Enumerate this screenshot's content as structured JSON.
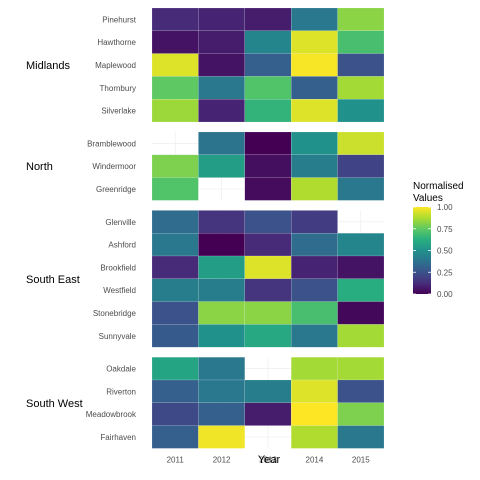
{
  "chart_data": {
    "type": "heatmap",
    "xlabel": "Year",
    "years": [
      "2011",
      "2012",
      "2013",
      "2014",
      "2015"
    ],
    "legend": {
      "title": [
        "Normalised",
        "Values"
      ],
      "ticks": [
        "0.00",
        "0.25",
        "0.50",
        "0.75",
        "1.00"
      ],
      "range": [
        0,
        1
      ],
      "colormap": "viridis",
      "placement": "right"
    },
    "panels": [
      {
        "region": "Midlands",
        "rows": [
          {
            "label": "Pinehurst",
            "values": [
              0.12,
              0.1,
              0.08,
              0.4,
              0.82
            ]
          },
          {
            "label": "Hawthorne",
            "values": [
              0.05,
              0.08,
              0.45,
              0.95,
              0.7
            ]
          },
          {
            "label": "Maplewood",
            "values": [
              0.95,
              0.05,
              0.3,
              0.99,
              0.25
            ]
          },
          {
            "label": "Thornbury",
            "values": [
              0.75,
              0.4,
              0.72,
              0.3,
              0.86
            ]
          },
          {
            "label": "Silverlake",
            "values": [
              0.85,
              0.1,
              0.65,
              0.95,
              0.5
            ]
          }
        ]
      },
      {
        "region": "North",
        "rows": [
          {
            "label": "Bramblewood",
            "values": [
              null,
              0.38,
              0.0,
              0.5,
              0.92
            ]
          },
          {
            "label": "Windermoor",
            "values": [
              0.8,
              0.55,
              0.04,
              0.42,
              0.2
            ]
          },
          {
            "label": "Greenridge",
            "values": [
              0.72,
              null,
              0.03,
              0.88,
              0.4
            ]
          }
        ]
      },
      {
        "region": "South East",
        "rows": [
          {
            "label": "Glenville",
            "values": [
              0.35,
              0.15,
              0.25,
              0.18,
              null
            ]
          },
          {
            "label": "Ashford",
            "values": [
              0.4,
              0.0,
              0.12,
              0.35,
              0.45
            ]
          },
          {
            "label": "Brookfield",
            "values": [
              0.12,
              0.55,
              0.95,
              0.1,
              0.05
            ]
          },
          {
            "label": "Westfield",
            "values": [
              0.42,
              0.42,
              0.15,
              0.25,
              0.62
            ]
          },
          {
            "label": "Stonebridge",
            "values": [
              0.25,
              0.82,
              0.82,
              0.7,
              0.02
            ]
          },
          {
            "label": "Sunnyvale",
            "values": [
              0.28,
              0.5,
              0.6,
              0.4,
              0.86
            ]
          }
        ]
      },
      {
        "region": "South West",
        "rows": [
          {
            "label": "Oakdale",
            "values": [
              0.58,
              0.4,
              null,
              0.86,
              0.86
            ]
          },
          {
            "label": "Riverton",
            "values": [
              0.3,
              0.4,
              0.42,
              0.95,
              0.25
            ]
          },
          {
            "label": "Meadowbrook",
            "values": [
              0.22,
              0.3,
              0.08,
              1.0,
              0.8
            ]
          },
          {
            "label": "Fairhaven",
            "values": [
              0.3,
              0.98,
              null,
              0.88,
              0.4
            ]
          }
        ]
      }
    ]
  }
}
